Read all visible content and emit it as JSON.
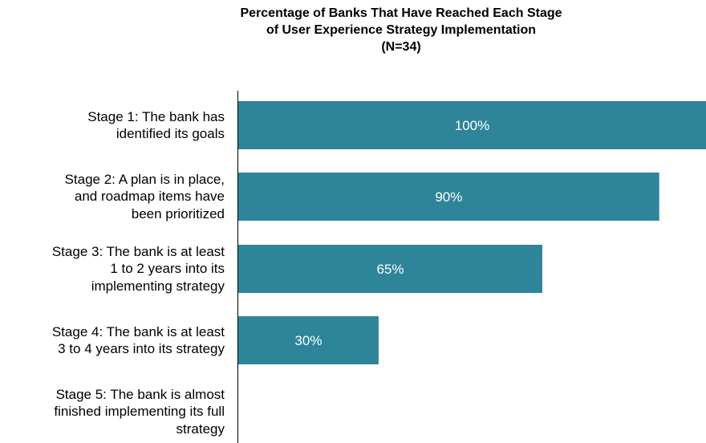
{
  "chart_data": {
    "type": "bar",
    "orientation": "horizontal",
    "title": [
      "Percentage of Banks That Have Reached Each Stage",
      "of User Experience Strategy Implementation",
      "(N=34)"
    ],
    "categories": [
      [
        "Stage 1: The bank has",
        "identified its goals"
      ],
      [
        "Stage 2: A plan is in place,",
        "and roadmap items have",
        "been prioritized"
      ],
      [
        "Stage 3: The bank is at least",
        "1 to 2 years into its",
        "implementing strategy"
      ],
      [
        "Stage 4: The bank is at least",
        "3 to 4 years into its strategy"
      ],
      [
        "Stage 5: The bank is almost",
        "finished implementing its full",
        "strategy"
      ]
    ],
    "values": [
      100,
      90,
      65,
      30,
      null
    ],
    "data_labels": [
      "100%",
      "90%",
      "65%",
      "30%",
      ""
    ],
    "xlim": [
      0,
      100
    ],
    "bar_color": "#2e8599",
    "label_color": "#ffffff",
    "grid": false,
    "legend": "none"
  }
}
